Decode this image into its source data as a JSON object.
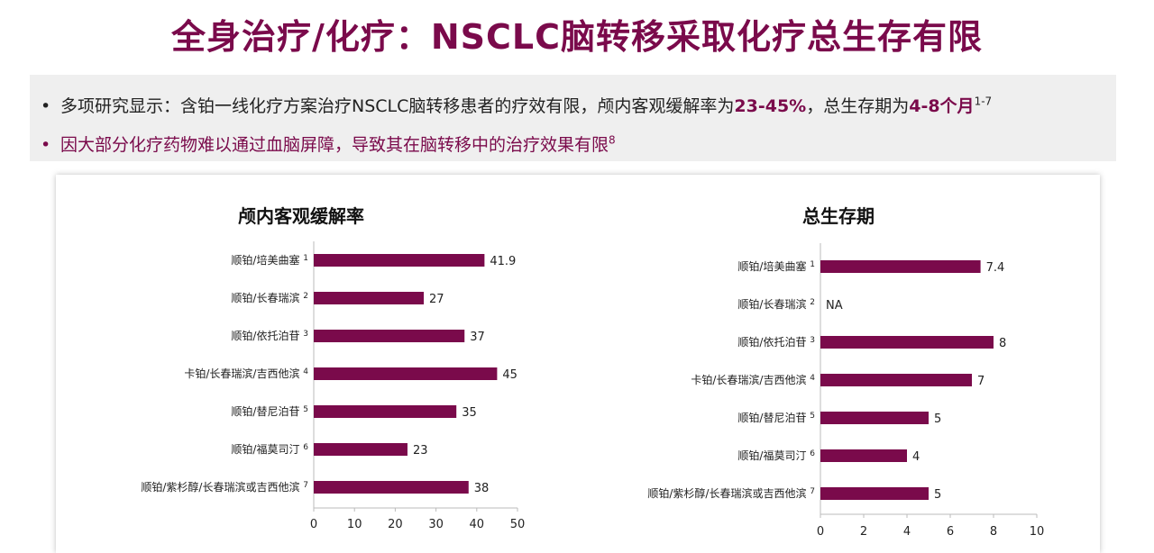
{
  "page": {
    "title": "全身治疗/化疗：NSCLC脑转移采取化疗总生存有限",
    "bullets": [
      {
        "dot": "•",
        "prefix": "多项研究显示：含铂一线化疗方案治疗NSCLC脑转移患者的疗效有限，颅内客观缓解率为",
        "highlight1": "23-45%",
        "middle": "，总生存期为",
        "highlight2": "4-8个月",
        "sup": "1-7"
      },
      {
        "dot": "•",
        "text": "因大部分化疗药物难以通过血脑屏障，导致其在脑转移中的治疗效果有限",
        "sup": "8"
      }
    ]
  },
  "chart_data": [
    {
      "type": "bar",
      "orientation": "horizontal",
      "title": "颅内客观缓解率",
      "categories": [
        "顺铂/培美曲塞",
        "顺铂/长春瑞滨",
        "顺铂/依托泊苷",
        "卡铂/长春瑞滨/吉西他滨",
        "顺铂/替尼泊苷",
        "顺铂/福莫司汀",
        "顺铂/紫杉醇/长春瑞滨或吉西他滨"
      ],
      "refs": [
        "1",
        "2",
        "3",
        "4",
        "5",
        "6",
        "7"
      ],
      "values": [
        41.9,
        27,
        37,
        45,
        35,
        23,
        38
      ],
      "labels": [
        "41.9",
        "27",
        "37",
        "45",
        "35",
        "23",
        "38"
      ],
      "xlim": [
        0,
        50
      ],
      "xticks": [
        0,
        10,
        20,
        30,
        40,
        50
      ],
      "color": "#7a0a4b"
    },
    {
      "type": "bar",
      "orientation": "horizontal",
      "title": "总生存期",
      "categories": [
        "顺铂/培美曲塞",
        "顺铂/长春瑞滨",
        "顺铂/依托泊苷",
        "卡铂/长春瑞滨/吉西他滨",
        "顺铂/替尼泊苷",
        "顺铂/福莫司汀",
        "顺铂/紫杉醇/长春瑞滨或吉西他滨"
      ],
      "refs": [
        "1",
        "2",
        "3",
        "4",
        "5",
        "6",
        "7"
      ],
      "values": [
        7.4,
        null,
        8,
        7,
        5,
        4,
        5
      ],
      "labels": [
        "7.4",
        "NA",
        "8",
        "7",
        "5",
        "4",
        "5"
      ],
      "xlim": [
        0,
        10
      ],
      "xticks": [
        0,
        2,
        4,
        6,
        8,
        10
      ],
      "color": "#7a0a4b"
    }
  ]
}
